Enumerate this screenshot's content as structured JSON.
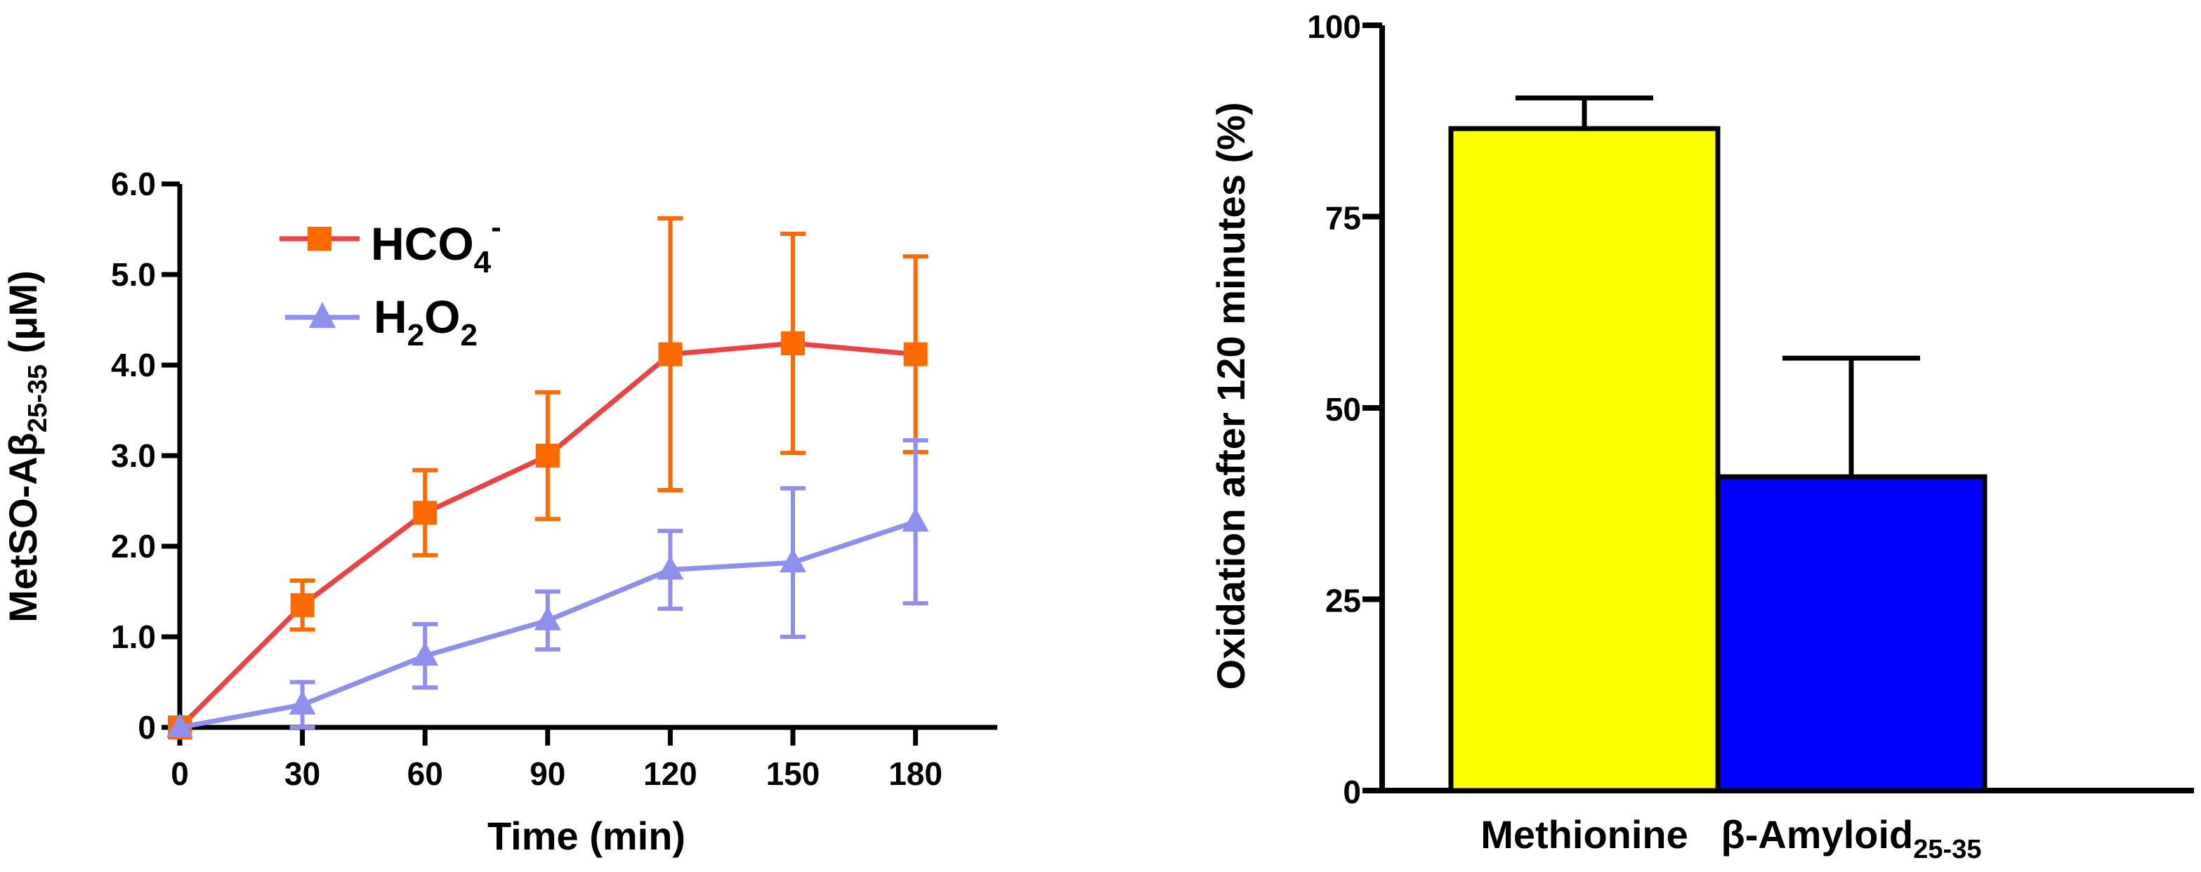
{
  "chart_data": [
    {
      "type": "line",
      "xlabel": "Time (min)",
      "ylabel": {
        "main": "MetSO-Aβ",
        "sub": "25-35",
        "unit": " (μM)"
      },
      "x": [
        0,
        30,
        60,
        90,
        120,
        150,
        180
      ],
      "xticks": [
        "0",
        "30",
        "60",
        "90",
        "120",
        "150",
        "180"
      ],
      "xlim": [
        0,
        200
      ],
      "ylim": [
        0,
        6.0
      ],
      "yticks": [
        0,
        1.0,
        2.0,
        3.0,
        4.0,
        5.0,
        6.0
      ],
      "ytick_labels": [
        "0",
        "1.0",
        "2.0",
        "3.0",
        "4.0",
        "5.0",
        "6.0"
      ],
      "series": [
        {
          "name": "HCO4-",
          "legend": {
            "base": "HCO",
            "sub": "4",
            "sup": "-"
          },
          "marker": "square",
          "line_color": "#f04040",
          "marker_color": "#ff6a00",
          "values": [
            0,
            1.35,
            2.37,
            3.0,
            4.12,
            4.24,
            4.12
          ],
          "errors": [
            0,
            0.27,
            0.47,
            0.7,
            1.5,
            1.21,
            1.08
          ]
        },
        {
          "name": "H2O2",
          "legend": {
            "parts": [
              "H",
              "2",
              "O",
              "2"
            ]
          },
          "marker": "triangle",
          "line_color": "#8f8ff0",
          "marker_color": "#8f8ff0",
          "values": [
            0,
            0.25,
            0.79,
            1.18,
            1.74,
            1.82,
            2.27
          ],
          "errors": [
            0,
            0.25,
            0.35,
            0.32,
            0.43,
            0.82,
            0.9
          ]
        }
      ]
    },
    {
      "type": "bar",
      "ylabel": "Oxidation after 120 minutes (%)",
      "ylim": [
        0,
        100
      ],
      "yticks": [
        0,
        25,
        50,
        75,
        100
      ],
      "ytick_labels": [
        "0",
        "25",
        "50",
        "75",
        "100"
      ],
      "categories": [
        "Methionine",
        "β-Amyloid25-35"
      ],
      "category_labels": [
        {
          "main": "Methionine",
          "sub": ""
        },
        {
          "main": "β-Amyloid",
          "sub": "25-35"
        }
      ],
      "values": [
        86.5,
        41.0
      ],
      "errors": [
        4.0,
        15.5
      ],
      "colors": [
        "#ffff00",
        "#0000ff"
      ]
    }
  ]
}
